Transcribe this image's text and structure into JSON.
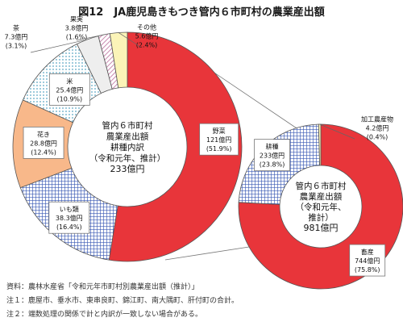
{
  "title": "図12　JA鹿児島きもつき管内６市町村の農業産出額",
  "chart_data": [
    {
      "type": "pie",
      "variant": "donut",
      "center_label": [
        "管内６市町村",
        "農業産出額",
        "耕種内訳",
        "（令和元年、推計）",
        "233億円"
      ],
      "slices": [
        {
          "name": "野菜",
          "value": 121,
          "value_label": "121億円",
          "pct_label": "(51.9%)",
          "color": "#e8353a",
          "pattern": "solid"
        },
        {
          "name": "いも類",
          "value": 38.3,
          "value_label": "38.3億円",
          "pct_label": "(16.4%)",
          "color": "#3b5bb5",
          "pattern": "grid"
        },
        {
          "name": "花き",
          "value": 28.8,
          "value_label": "28.8億円",
          "pct_label": "(12.4%)",
          "color": "#f8b88a",
          "pattern": "solid"
        },
        {
          "name": "米",
          "value": 25.4,
          "value_label": "25.4億円",
          "pct_label": "(10.9%)",
          "color": "#7fbfd4",
          "pattern": "dots"
        },
        {
          "name": "茶",
          "value": 7.3,
          "value_label": "7.3億円",
          "pct_label": "(3.1%)",
          "color": "#eeeeee",
          "pattern": "solid"
        },
        {
          "name": "果実",
          "value": 3.8,
          "value_label": "3.8億円",
          "pct_label": "(1.6%)",
          "color": "#e2b6ce",
          "pattern": "hatch"
        },
        {
          "name": "その他",
          "value": 5.6,
          "value_label": "5.6億円",
          "pct_label": "(2.4%)",
          "color": "#fbf4b8",
          "pattern": "solid"
        }
      ]
    },
    {
      "type": "pie",
      "variant": "donut",
      "center_label": [
        "管内６市町村",
        "農業産出額",
        "（令和元年、",
        "推計）",
        "981億円"
      ],
      "slices": [
        {
          "name": "畜産",
          "value": 744,
          "value_label": "744億円",
          "pct_label": "(75.8%)",
          "color": "#e8353a",
          "pattern": "solid"
        },
        {
          "name": "耕種",
          "value": 233,
          "value_label": "233億円",
          "pct_label": "(23.8%)",
          "color": "#3b5bb5",
          "pattern": "grid"
        },
        {
          "name": "加工農産物",
          "value": 4.2,
          "value_label": "4.2億円",
          "pct_label": "(0.4%)",
          "color": "#fbf4b8",
          "pattern": "solid"
        }
      ]
    }
  ],
  "notes": [
    "資料：農林水産省「令和元年市町村別農業産出額（推計）」",
    "注１：鹿屋市、垂水市、東串良町、錦江町、南大隅町、肝付町の合計。",
    "注２：端数処理の関係で計と内訳が一致しない場合がある。"
  ]
}
